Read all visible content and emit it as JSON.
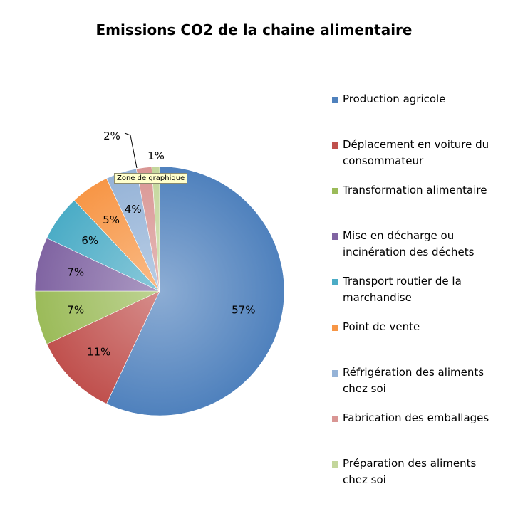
{
  "chart_data": {
    "type": "pie",
    "title": "Emissions CO2 de la chaine alimentaire",
    "series": [
      {
        "name": "Production agricole",
        "value": 57,
        "label": "57%",
        "color": "#4f81bd"
      },
      {
        "name": "Déplacement en voiture du consommateur",
        "value": 11,
        "label": "11%",
        "color": "#c0504d"
      },
      {
        "name": "Transformation alimentaire",
        "value": 7,
        "label": "7%",
        "color": "#9bbb59"
      },
      {
        "name": "Mise en décharge ou incinération des déchets",
        "value": 7,
        "label": "7%",
        "color": "#8064a2"
      },
      {
        "name": "Transport routier de la marchandise",
        "value": 6,
        "label": "6%",
        "color": "#4bacc6"
      },
      {
        "name": "Point de vente",
        "value": 5,
        "label": "5%",
        "color": "#f79646"
      },
      {
        "name": "Réfrigération des aliments chez soi",
        "value": 4,
        "label": "4%",
        "color": "#95b3d7"
      },
      {
        "name": "Fabrication des emballages",
        "value": 2,
        "label": "2%",
        "color": "#d99694"
      },
      {
        "name": "Préparation des aliments chez soi",
        "value": 1,
        "label": "1%",
        "color": "#c3d69b"
      }
    ],
    "legend_position": "right"
  },
  "tooltip": "Zone de graphique"
}
